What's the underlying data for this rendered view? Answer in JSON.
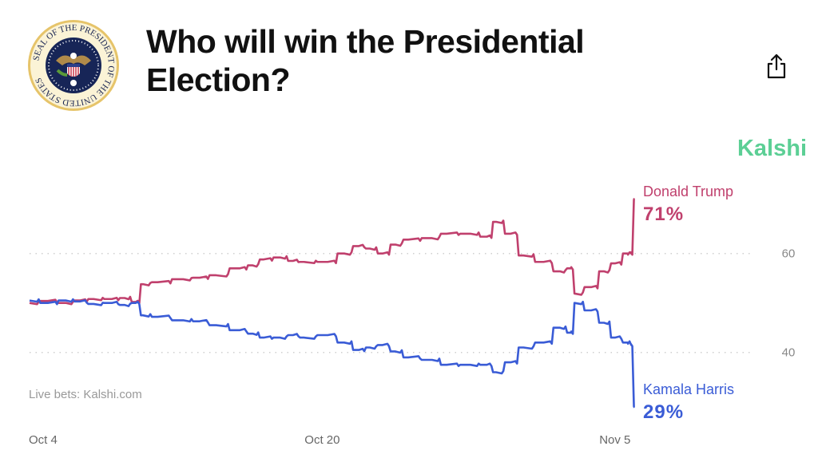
{
  "header": {
    "title": "Who will win the Presidential Election?",
    "seal_text": "SEAL OF THE PRESIDENT OF THE UNITED STATES",
    "share_icon": "share-icon"
  },
  "brand": "Kalshi",
  "source": "Live bets: Kalshi.com",
  "chart_data": {
    "type": "line",
    "title": "Who will win the Presidential Election?",
    "xlabel": "",
    "ylabel": "",
    "x_unit": "days since Oct 4",
    "x_ticks": [
      {
        "day": 0,
        "label": "Oct 4"
      },
      {
        "day": 16,
        "label": "Oct 20"
      },
      {
        "day": 32,
        "label": "Nov 5"
      }
    ],
    "y_ticks": [
      {
        "value": 60,
        "label": "60"
      },
      {
        "value": 40,
        "label": "40"
      }
    ],
    "ylim": [
      25,
      75
    ],
    "xlim": [
      0,
      39.5
    ],
    "grid": "horizontal-dotted",
    "series": [
      {
        "name": "Donald Trump",
        "final_label": "71%",
        "color": "#c0406d",
        "x": [
          0,
          1,
          2,
          2.75,
          3.5,
          4.5,
          5.2,
          5.8,
          6.2,
          7,
          8.4,
          9.3,
          10.2,
          11.5,
          12.2,
          12.8,
          13.7,
          14.4,
          15,
          16.3,
          17.2,
          18,
          18.6,
          19.3,
          20,
          20.7,
          22,
          22.8,
          24.1,
          25,
          25.5,
          26.3,
          27,
          28.1,
          29,
          29.6,
          29.8,
          30.7,
          31.4,
          32,
          32.7,
          32.9,
          33
        ],
        "values": [
          50,
          50.4,
          50,
          50.5,
          50.8,
          50.8,
          51,
          50.2,
          53.8,
          54.2,
          54.8,
          55.1,
          55.6,
          57,
          57.6,
          58.8,
          59.2,
          58.5,
          58.3,
          58.3,
          60,
          61.5,
          61,
          60,
          61.8,
          62.8,
          63.1,
          64,
          64,
          63.4,
          66.4,
          64,
          59.6,
          58.3,
          56.4,
          57,
          51.9,
          53.2,
          56.4,
          58,
          60,
          60,
          71
        ]
      },
      {
        "name": "Kamala Harris",
        "final_label": "29%",
        "color": "#3a5cd6",
        "x": [
          0,
          1,
          2,
          2.75,
          3.5,
          4.5,
          5.2,
          5.8,
          6.2,
          7,
          8.4,
          9.3,
          10.2,
          11.5,
          12.2,
          12.8,
          13.7,
          14.4,
          15,
          16.3,
          17.2,
          18,
          18.6,
          19.3,
          20,
          20.7,
          22,
          22.8,
          24.1,
          25,
          25.5,
          26.3,
          27,
          28.1,
          29,
          29.6,
          29.8,
          30.7,
          31.4,
          32,
          32.7,
          32.9,
          33
        ],
        "values": [
          50.5,
          50,
          50.5,
          50.3,
          49.8,
          50,
          49.6,
          50,
          47.5,
          47.2,
          46.5,
          46.3,
          45.5,
          44.5,
          43.8,
          43,
          43,
          43.5,
          43,
          43.5,
          42,
          40.5,
          41,
          41.5,
          40.2,
          39,
          38.5,
          37.5,
          37.5,
          37.5,
          36,
          38,
          41,
          42,
          45,
          44,
          50,
          48.5,
          46,
          43,
          42,
          41.5,
          29
        ]
      }
    ]
  }
}
